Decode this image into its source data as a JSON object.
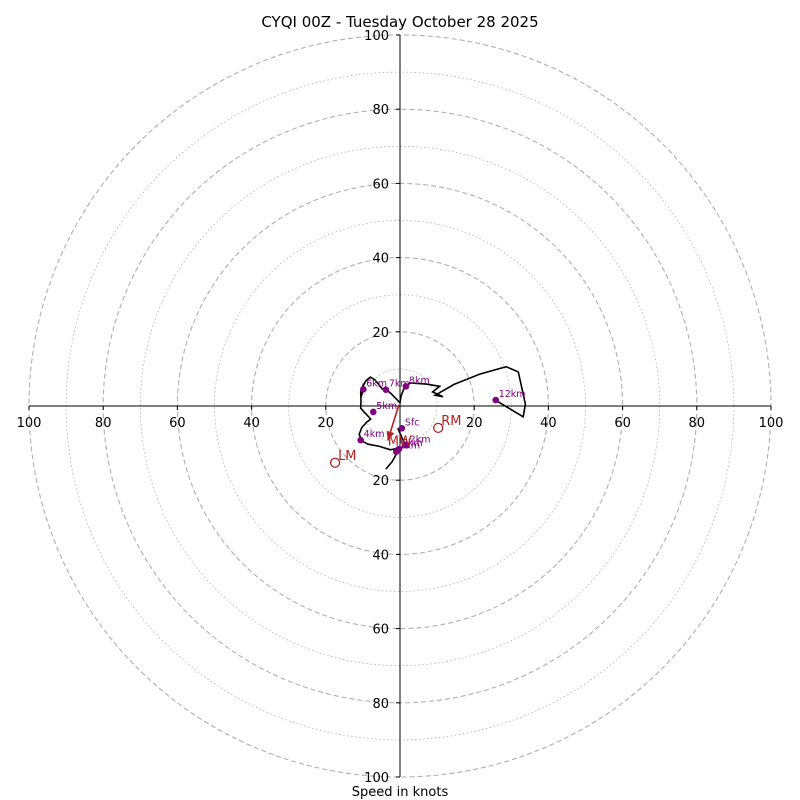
{
  "chart_data": {
    "type": "hodograph",
    "title": "CYQI 00Z - Tuesday October 28 2025",
    "xlabel": "Speed in knots",
    "xlim": [
      -100,
      100
    ],
    "ylim": [
      -100,
      100
    ],
    "ring_labels": [
      "20",
      "40",
      "60",
      "80",
      "100"
    ],
    "x_tick_labels": [
      {
        "value": -100,
        "label": "100"
      },
      {
        "value": -80,
        "label": "80"
      },
      {
        "value": -60,
        "label": "60"
      },
      {
        "value": -40,
        "label": "40"
      },
      {
        "value": -20,
        "label": "20"
      },
      {
        "value": 20,
        "label": "20"
      },
      {
        "value": 40,
        "label": "40"
      },
      {
        "value": 60,
        "label": "60"
      },
      {
        "value": 80,
        "label": "80"
      },
      {
        "value": 100,
        "label": "100"
      }
    ],
    "y_tick_labels": [
      {
        "value": 100,
        "label": "100"
      },
      {
        "value": 80,
        "label": "80"
      },
      {
        "value": 60,
        "label": "60"
      },
      {
        "value": 40,
        "label": "40"
      },
      {
        "value": 20,
        "label": "20"
      },
      {
        "value": -20,
        "label": "20"
      },
      {
        "value": -40,
        "label": "40"
      },
      {
        "value": -60,
        "label": "60"
      },
      {
        "value": -80,
        "label": "80"
      },
      {
        "value": -100,
        "label": "100"
      }
    ],
    "wind_profile": [
      [
        -0.6,
        -6.0
      ],
      [
        0.5,
        -8.5
      ],
      [
        1.2,
        -10.0
      ],
      [
        1.7,
        -10.8
      ],
      [
        0.8,
        -11.0
      ],
      [
        -0.8,
        -11.4
      ],
      [
        -1.6,
        -11.6
      ],
      [
        -2.6,
        -11.8
      ],
      [
        -3.5,
        -11.5
      ],
      [
        -4.5,
        -11.2
      ],
      [
        -5.5,
        -10.9
      ],
      [
        -7.0,
        -10.6
      ],
      [
        -8.6,
        -10.3
      ],
      [
        -10.3,
        -9.4
      ],
      [
        -11.0,
        -7.6
      ],
      [
        -10.3,
        -5.8
      ],
      [
        -9.0,
        -4.4
      ],
      [
        -7.9,
        -3.5
      ],
      [
        -9.9,
        -1.4
      ],
      [
        -10.6,
        -0.6
      ],
      [
        -10.5,
        1.5
      ],
      [
        -10.6,
        3.8
      ],
      [
        -10.0,
        5.5
      ],
      [
        -9.8,
        4.5
      ],
      [
        -10.5,
        2.4
      ],
      [
        -10.2,
        4.2
      ],
      [
        -9.9,
        5.5
      ],
      [
        -9.2,
        6.8
      ],
      [
        -8.0,
        7.8
      ],
      [
        -6.8,
        7.1
      ],
      [
        -4.8,
        4.6
      ],
      [
        -3.6,
        4.3
      ],
      [
        -2.6,
        3.5
      ],
      [
        -0.7,
        1.6
      ],
      [
        0.0,
        0.9
      ],
      [
        0.3,
        2.7
      ],
      [
        1.0,
        4.6
      ],
      [
        2.7,
        6.2
      ],
      [
        7.0,
        5.9
      ],
      [
        10.7,
        5.3
      ],
      [
        8.8,
        3.8
      ],
      [
        11.6,
        2.5
      ],
      [
        9.5,
        2.9
      ],
      [
        14.5,
        5.8
      ],
      [
        21.5,
        8.6
      ],
      [
        28.6,
        10.6
      ],
      [
        31.9,
        9.2
      ],
      [
        33.8,
        0.5
      ],
      [
        33.2,
        -2.9
      ],
      [
        25.7,
        1.6
      ]
    ],
    "tail_segment": [
      [
        -0.8,
        -12.6
      ],
      [
        -2.1,
        -15.0
      ],
      [
        -3.8,
        -17.0
      ]
    ],
    "height_markers": [
      {
        "label": "Sfc",
        "u": 0.5,
        "v": -6.0
      },
      {
        "label": "1km",
        "u": -1.0,
        "v": -12.3
      },
      {
        "label": "2km",
        "u": 1.8,
        "v": -10.6
      },
      {
        "label": "3km",
        "u": -0.3,
        "v": -11.6
      },
      {
        "label": "4km",
        "u": -10.6,
        "v": -9.2
      },
      {
        "label": "5km",
        "u": -7.2,
        "v": -1.6
      },
      {
        "label": "6km",
        "u": -9.9,
        "v": 4.5
      },
      {
        "label": "7km",
        "u": -3.8,
        "v": 4.4
      },
      {
        "label": "8km",
        "u": 1.6,
        "v": 5.3
      },
      {
        "label": "12km",
        "u": 25.8,
        "v": 1.6
      }
    ],
    "storm_motion": {
      "MW": {
        "label": "MW",
        "u": -3.3,
        "v": -9.3
      },
      "RM": {
        "label": "RM",
        "u": 10.3,
        "v": -5.9
      },
      "LM": {
        "label": "LM",
        "u": -17.5,
        "v": -15.3
      }
    },
    "bunkers_vector": {
      "from": [
        -0.3,
        0.3
      ],
      "to": [
        -3.3,
        -9.3
      ]
    },
    "colors": {
      "profile": "#000000",
      "markers": "#800080",
      "storm": "#b22222",
      "grid": "#b0b0b0",
      "axes": "#000000"
    }
  }
}
